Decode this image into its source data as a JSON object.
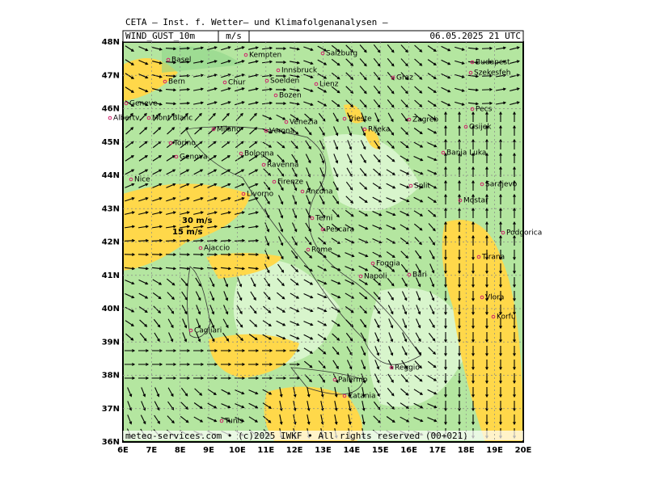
{
  "header": {
    "title": "CETA — Inst. f. Wetter— und Klimafolgenanalysen —",
    "field": "WIND_GUST_10m",
    "unit": "m/s",
    "datetime": "06.05.2025 21 UTC"
  },
  "axes": {
    "lat_labels": [
      "48N",
      "47N",
      "46N",
      "45N",
      "44N",
      "43N",
      "42N",
      "41N",
      "40N",
      "39N",
      "38N",
      "37N",
      "36N"
    ],
    "lon_labels": [
      "6E",
      "7E",
      "8E",
      "9E",
      "10E",
      "11E",
      "12E",
      "13E",
      "14E",
      "15E",
      "16E",
      "17E",
      "18E",
      "19E",
      "20E"
    ]
  },
  "legend": {
    "high": "30 m/s",
    "low": "15 m/s"
  },
  "cities": [
    "Basel",
    "Kempten",
    "Salzburg",
    "Budapest",
    "Bern",
    "Chur",
    "Innsbruck",
    "Soelden",
    "Lienz",
    "Graz",
    "Szekesfeh",
    "Geneve",
    "Bozen",
    "Pecs",
    "Albertv.",
    "Mont Blanc",
    "Milano",
    "Verona",
    "Venezia",
    "Trieste",
    "Zagreb",
    "Osijek",
    "Rijeka",
    "Torino",
    "Bologna",
    "Banja Luka",
    "Genova",
    "Ravenna",
    "Nice",
    "Firenze",
    "Split",
    "Sarajevo",
    "Livorno",
    "Ancona",
    "Mostar",
    "Terni",
    "Pescara",
    "Podgorica",
    "Ajaccio",
    "Rome",
    "Foggia",
    "Tirana",
    "Napoli",
    "Bari",
    "Vlora",
    "Cagliari",
    "Korfu",
    "Reggio",
    "Palermo",
    "Catania",
    "Tunis"
  ],
  "footer": "meteo-services.com • (c)2025 IWKF • All rights reserved (00+021)"
}
